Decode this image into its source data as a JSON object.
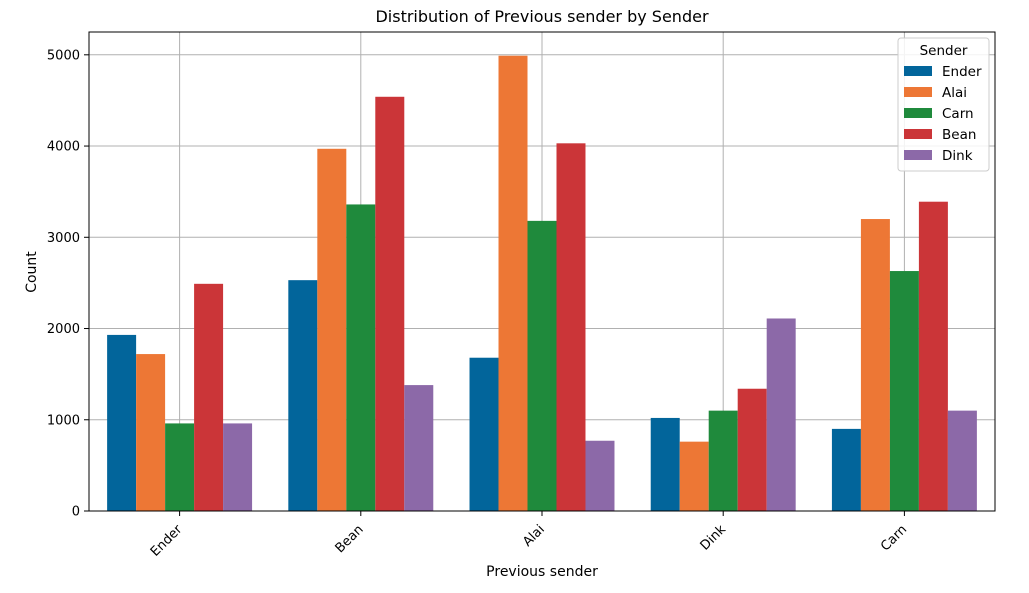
{
  "chart_data": {
    "type": "bar",
    "title": "Distribution of Previous sender by Sender",
    "xlabel": "Previous sender",
    "ylabel": "Count",
    "categories": [
      "Ender",
      "Bean",
      "Alai",
      "Dink",
      "Carn"
    ],
    "ylim": [
      0,
      5250
    ],
    "yticks": [
      0,
      1000,
      2000,
      3000,
      4000,
      5000
    ],
    "grid": true,
    "legend": {
      "title": "Sender",
      "placement": "top-right"
    },
    "series": [
      {
        "name": "Ender",
        "color": "#02659b",
        "values": [
          1930,
          2530,
          1680,
          1020,
          900
        ]
      },
      {
        "name": "Alai",
        "color": "#ed7735",
        "values": [
          1720,
          3970,
          4990,
          760,
          3200
        ]
      },
      {
        "name": "Carn",
        "color": "#1f8a3c",
        "values": [
          960,
          3360,
          3180,
          1100,
          2630
        ]
      },
      {
        "name": "Bean",
        "color": "#cb3538",
        "values": [
          2490,
          4540,
          4030,
          1340,
          3390
        ]
      },
      {
        "name": "Dink",
        "color": "#8c69a8",
        "values": [
          960,
          1380,
          770,
          2110,
          1100
        ]
      }
    ]
  }
}
